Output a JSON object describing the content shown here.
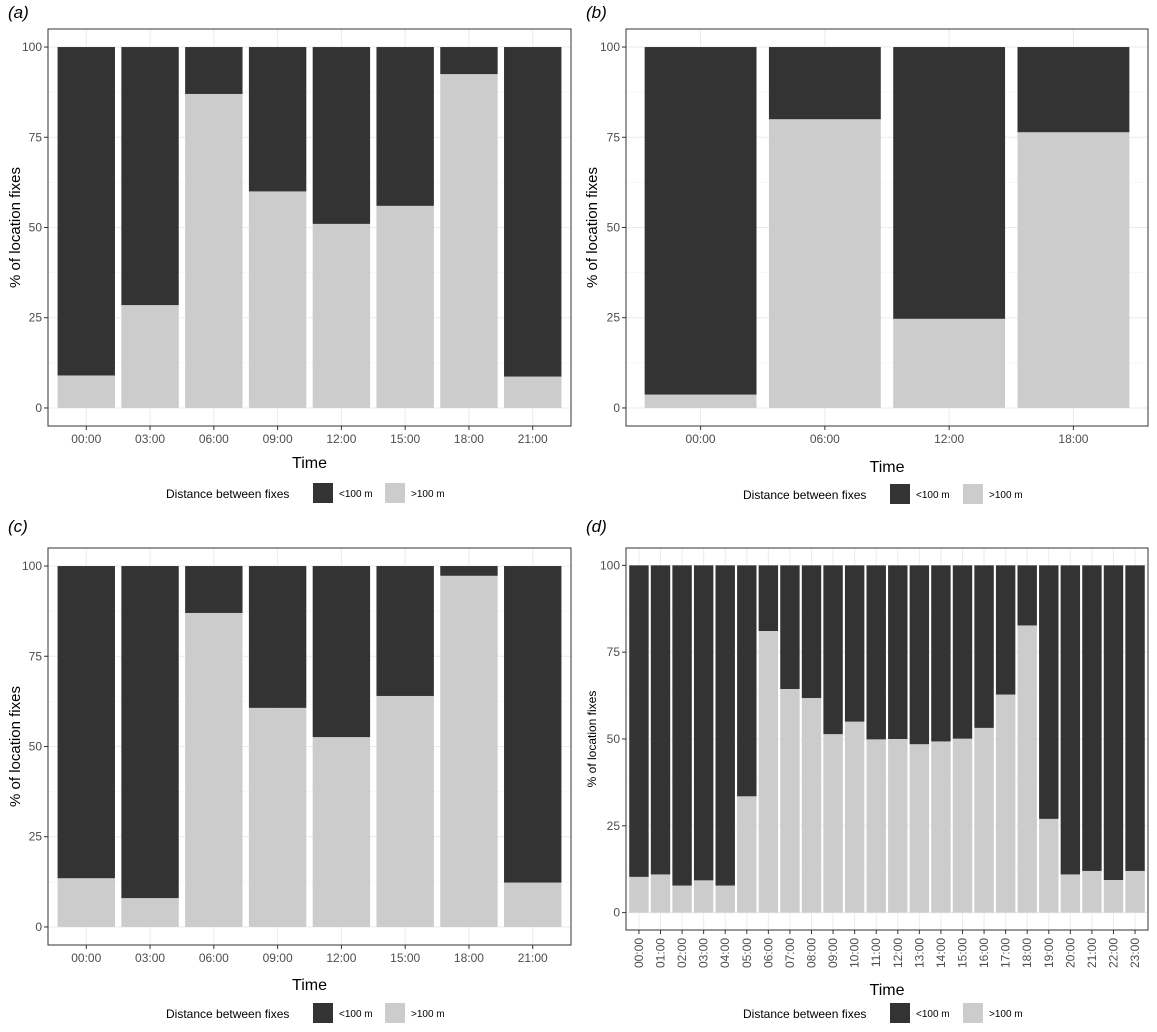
{
  "legend_title": "Distance between fixes",
  "legend_items": [
    "<100 m",
    ">100 m"
  ],
  "colors": {
    "below": "#333333",
    "above": "#cccccc",
    "grid": "#ebebeb",
    "frame": "#333333",
    "tick_text": "#4d4d4d",
    "title_text": "#000000"
  },
  "chart_data": [
    {
      "type": "bar",
      "stacked": true,
      "panel_label": "(a)",
      "xlabel": "Time",
      "ylabel": "% of location fixes",
      "ylim": [
        0,
        100
      ],
      "yticks": [
        0,
        25,
        50,
        75,
        100
      ],
      "grid": true,
      "legend_position": "bottom",
      "categories": [
        "00:00",
        "03:00",
        "06:00",
        "09:00",
        "12:00",
        "15:00",
        "18:00",
        "21:00"
      ],
      "series": [
        {
          "name": "<100 m",
          "values": [
            91,
            71.5,
            13,
            40,
            49,
            44,
            7.5,
            91.3
          ]
        },
        {
          "name": ">100 m",
          "values": [
            9,
            28.5,
            87,
            60,
            51,
            56,
            92.5,
            8.7
          ]
        }
      ]
    },
    {
      "type": "bar",
      "stacked": true,
      "panel_label": "(b)",
      "xlabel": "Time",
      "ylabel": "% of location fixes",
      "ylim": [
        0,
        100
      ],
      "yticks": [
        0,
        25,
        50,
        75,
        100
      ],
      "grid": true,
      "legend_position": "bottom",
      "categories": [
        "00:00",
        "06:00",
        "12:00",
        "18:00"
      ],
      "series": [
        {
          "name": "<100 m",
          "values": [
            96.3,
            20,
            75.3,
            23.6
          ]
        },
        {
          "name": ">100 m",
          "values": [
            3.7,
            80,
            24.7,
            76.4
          ]
        }
      ]
    },
    {
      "type": "bar",
      "stacked": true,
      "panel_label": "(c)",
      "xlabel": "Time",
      "ylabel": "% of location fixes",
      "ylim": [
        0,
        100
      ],
      "yticks": [
        0,
        25,
        50,
        75,
        100
      ],
      "grid": true,
      "legend_position": "bottom",
      "categories": [
        "00:00",
        "03:00",
        "06:00",
        "09:00",
        "12:00",
        "15:00",
        "18:00",
        "21:00"
      ],
      "series": [
        {
          "name": "<100 m",
          "values": [
            86.5,
            92,
            13,
            39.3,
            47.4,
            36,
            2.7,
            87.7
          ]
        },
        {
          "name": ">100 m",
          "values": [
            13.5,
            8,
            87,
            60.7,
            52.6,
            64,
            97.3,
            12.3
          ]
        }
      ]
    },
    {
      "type": "bar",
      "stacked": true,
      "panel_label": "(d)",
      "xlabel": "Time",
      "ylabel": "% of location fixes",
      "ylim": [
        0,
        100
      ],
      "yticks": [
        0,
        25,
        50,
        75,
        100
      ],
      "grid": true,
      "legend_position": "bottom",
      "xtick_rotation": 90,
      "categories": [
        "00:00",
        "01:00",
        "02:00",
        "03:00",
        "04:00",
        "05:00",
        "06:00",
        "07:00",
        "08:00",
        "09:00",
        "10:00",
        "11:00",
        "12:00",
        "13:00",
        "14:00",
        "15:00",
        "16:00",
        "17:00",
        "18:00",
        "19:00",
        "20:00",
        "21:00",
        "22:00",
        "23:00"
      ],
      "series": [
        {
          "name": "<100 m",
          "values": [
            89.7,
            89,
            92.2,
            90.7,
            92.2,
            66.5,
            18.9,
            35.6,
            38.2,
            48.6,
            45,
            50.1,
            50,
            51.5,
            50.7,
            49.9,
            46.8,
            37.2,
            17.3,
            73,
            89,
            88,
            90.6,
            88
          ]
        },
        {
          "name": ">100 m",
          "values": [
            10.3,
            11,
            7.8,
            9.3,
            7.8,
            33.5,
            81.1,
            64.4,
            61.8,
            51.4,
            55,
            49.9,
            50,
            48.5,
            49.3,
            50.1,
            53.2,
            62.8,
            82.7,
            27,
            11,
            12,
            9.4,
            12
          ]
        }
      ]
    }
  ]
}
